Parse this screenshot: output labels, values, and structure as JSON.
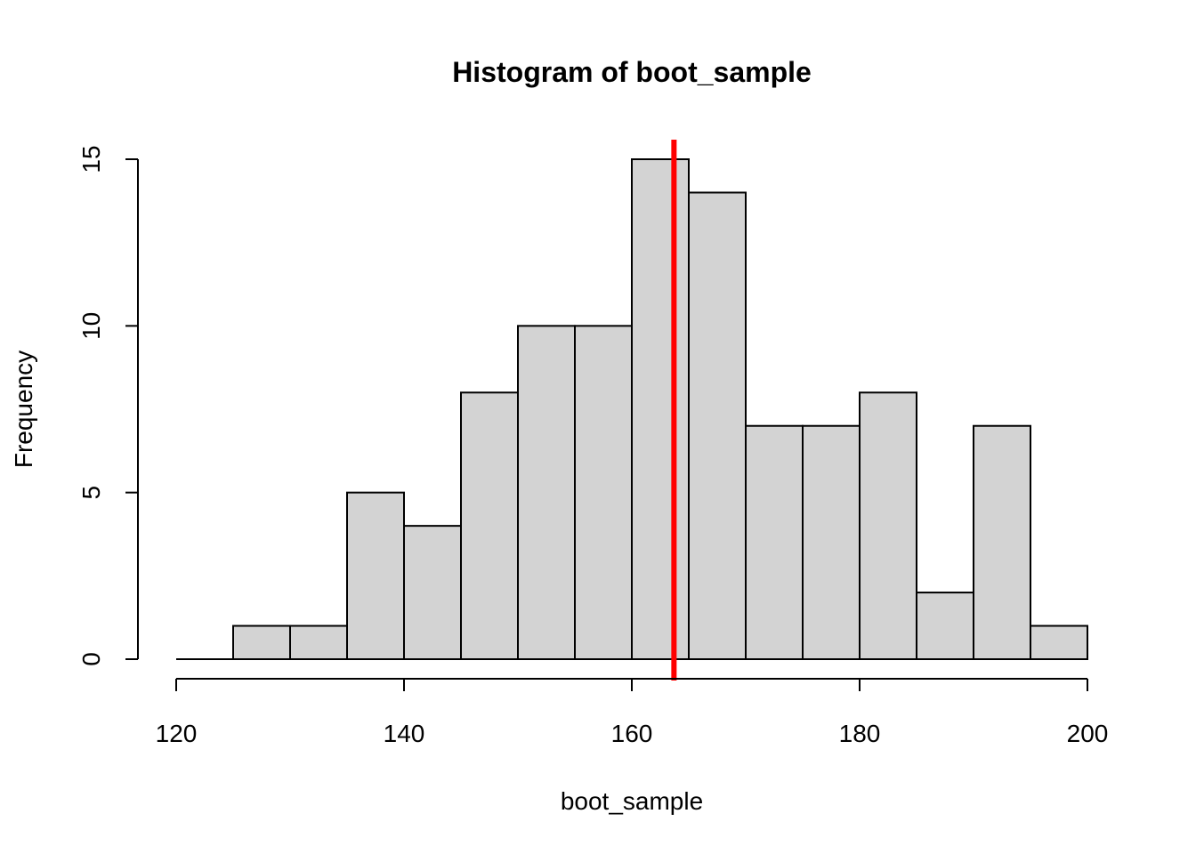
{
  "chart_data": {
    "type": "histogram",
    "title": "Histogram of boot_sample",
    "xlabel": "boot_sample",
    "ylabel": "Frequency",
    "bin_edges": [
      120,
      125,
      130,
      135,
      140,
      145,
      150,
      155,
      160,
      165,
      170,
      175,
      180,
      185,
      190,
      195,
      200
    ],
    "counts": [
      0,
      1,
      1,
      5,
      4,
      8,
      10,
      10,
      15,
      14,
      7,
      7,
      8,
      2,
      7,
      1
    ],
    "xlim": [
      120,
      200
    ],
    "ylim": [
      0,
      15
    ],
    "x_ticks": [
      120,
      140,
      160,
      180,
      200
    ],
    "y_ticks": [
      0,
      5,
      10,
      15
    ],
    "vline": {
      "x": 163.7,
      "color": "#ff0000"
    },
    "bar_fill": "#d3d3d3",
    "bar_stroke": "#000000"
  }
}
